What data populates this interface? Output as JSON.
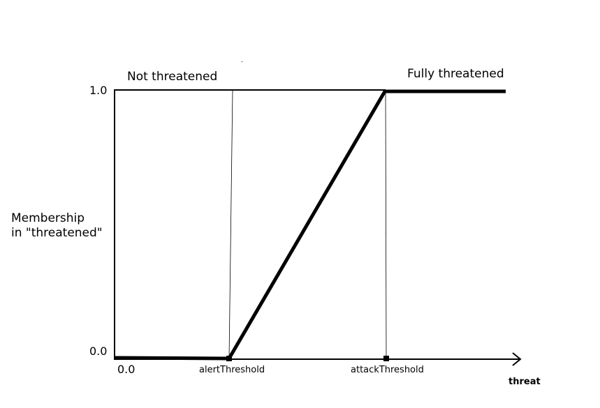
{
  "diagram": {
    "y_axis": {
      "label_line1": "Membership",
      "label_line2": "in \"threatened\"",
      "tick_top": "1.0",
      "tick_bottom": "0.0"
    },
    "x_axis": {
      "label": "threat",
      "origin_tick": "0.0",
      "marker_1": "alertThreshold",
      "marker_2": "attackThreshold"
    },
    "regions": {
      "left": "Not threatened",
      "right": "Fully threatened"
    },
    "membership_curve": {
      "type": "piecewise-linear",
      "points": [
        {
          "x": "0.0",
          "y": 0.0
        },
        {
          "x": "alertThreshold",
          "y": 0.0
        },
        {
          "x": "attackThreshold",
          "y": 1.0
        },
        {
          "x": "threat max",
          "y": 1.0
        }
      ]
    },
    "colors": {
      "ink": "#000000",
      "background": "#ffffff"
    }
  }
}
